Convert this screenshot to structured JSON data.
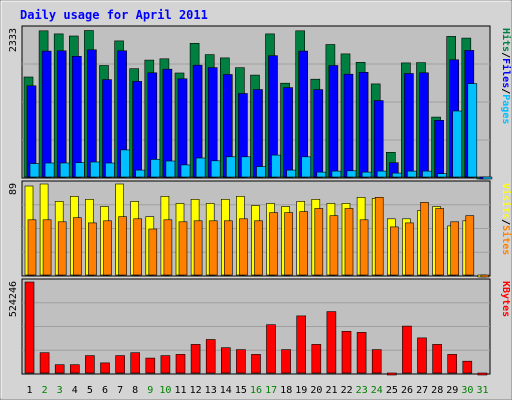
{
  "chart_data": {
    "type": "bar",
    "title": "Daily usage for April 2011",
    "categories": [
      "1",
      "2",
      "3",
      "4",
      "5",
      "6",
      "7",
      "8",
      "9",
      "10",
      "11",
      "12",
      "13",
      "14",
      "15",
      "16",
      "17",
      "18",
      "19",
      "20",
      "21",
      "22",
      "23",
      "24",
      "25",
      "26",
      "27",
      "28",
      "29",
      "30",
      "31"
    ],
    "weekend_days": [
      2,
      3,
      9,
      10,
      16,
      17,
      23,
      24,
      30,
      31
    ],
    "colors": {
      "hits": "#008040",
      "files": "#0000ff",
      "pages": "#00c0ff",
      "visits": "#ffff00",
      "sites": "#ff8000",
      "kbytes": "#ff0000",
      "title": "#0000ff",
      "weekend_label": "#008000",
      "weekday_label": "#000000",
      "plot_bg": "#c0c0c0",
      "frame_bg": "#d4d4d4"
    },
    "panels": [
      {
        "id": "usage",
        "ytick": "2333",
        "ymax": 2333,
        "legend": [
          {
            "text": "Hits",
            "color": "#008040"
          },
          {
            "text": "/",
            "color": "#000000"
          },
          {
            "text": "Files",
            "color": "#0000ff"
          },
          {
            "text": "/",
            "color": "#000000"
          },
          {
            "text": "Pages",
            "color": "#00c0ff"
          }
        ],
        "series": [
          {
            "name": "Hits",
            "color": "#008040",
            "values": [
              1576,
              2304,
              2255,
              2223,
              2309,
              1758,
              2146,
              1707,
              1843,
              1863,
              1640,
              2108,
              1930,
              1878,
              1723,
              1606,
              2255,
              1479,
              2304,
              1542,
              2088,
              1940,
              1808,
              1467,
              390,
              1799,
              1804,
              944,
              2217,
              2190,
              0
            ]
          },
          {
            "name": "Files",
            "color": "#0000ff",
            "values": [
              1437,
              1984,
              1990,
              1902,
              2005,
              1536,
              1990,
              1507,
              1643,
              1700,
              1548,
              1763,
              1725,
              1615,
              1316,
              1380,
              1912,
              1409,
              1984,
              1377,
              1757,
              1620,
              1650,
              1205,
              226,
              1632,
              1643,
              894,
              1848,
              1995,
              0
            ]
          },
          {
            "name": "Pages",
            "color": "#00c0ff",
            "values": [
              211,
              221,
              221,
              226,
              237,
              221,
              427,
              108,
              278,
              252,
              190,
              299,
              256,
              319,
              319,
              164,
              345,
              108,
              319,
              77,
              93,
              98,
              77,
              93,
              61,
              93,
              93,
              52,
              1041,
              1473,
              0
            ]
          }
        ]
      },
      {
        "id": "visits",
        "ytick": "89",
        "ymax": 89,
        "legend": [
          {
            "text": "Visits",
            "color": "#ffff00"
          },
          {
            "text": "/",
            "color": "#000000"
          },
          {
            "text": "Sites",
            "color": "#ff8000"
          }
        ],
        "series": [
          {
            "name": "Visits",
            "color": "#ffff00",
            "values": [
              87,
              89,
              72,
              77,
              74,
              67,
              89,
              72,
              57,
              77,
              70,
              74,
              70,
              74,
              77,
              68,
              70,
              67,
              72,
              74,
              70,
              70,
              76,
              75,
              55,
              55,
              63,
              67,
              48,
              53,
              0
            ]
          },
          {
            "name": "Sites",
            "color": "#ff8000",
            "values": [
              54,
              54,
              52,
              56,
              51,
              53,
              57,
              55,
              45,
              54,
              52,
              53,
              53,
              53,
              55,
              53,
              61,
              61,
              62,
              65,
              58,
              65,
              54,
              76,
              47,
              51,
              71,
              65,
              52,
              58,
              0
            ]
          }
        ]
      },
      {
        "id": "kbytes",
        "ytick": "524246",
        "ymax": 524246,
        "legend": [
          {
            "text": "KBytes",
            "color": "#ff0000"
          }
        ],
        "series": [
          {
            "name": "KBytes",
            "color": "#ff0000",
            "values": [
              524246,
              117000,
              48000,
              48000,
              100000,
              58000,
              100000,
              117000,
              86000,
              100000,
              107000,
              165000,
              193000,
              146000,
              135000,
              107000,
              278000,
              135000,
              329000,
              165000,
              354000,
              240000,
              234000,
              135000,
              0,
              270000,
              202000,
              165000,
              107000,
              68000,
              0
            ]
          }
        ]
      }
    ]
  }
}
